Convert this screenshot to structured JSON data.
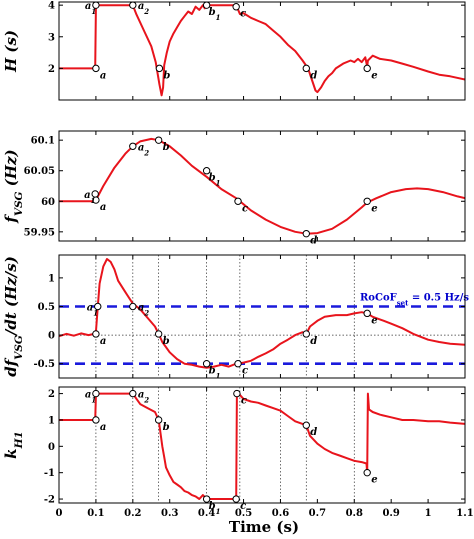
{
  "chart_data": {
    "type": "line",
    "shared_x": {
      "xlabel": "Time (s)",
      "xlim": [
        0,
        1.1
      ],
      "ticks": [
        0,
        0.1,
        0.2,
        0.3,
        0.4,
        0.5,
        0.6,
        0.7,
        0.8,
        0.9,
        1,
        1.1
      ],
      "tick_labels": [
        "0",
        "0.1",
        "0.2",
        "0.3",
        "0.4",
        "0.5",
        "0.6",
        "0.7",
        "0.8",
        "0.9",
        "1",
        "1.1"
      ]
    },
    "line_color": "#e8141c",
    "ref_line_color": "#1a1adc",
    "panels": [
      {
        "id": "H",
        "ylabel_main": "H",
        "ylabel_unit": " (s)",
        "ylim": [
          1,
          4.1
        ],
        "yticks": [
          2,
          3,
          4
        ],
        "ytick_labels": [
          "2",
          "3",
          "4"
        ],
        "vlines": [],
        "series": [
          [
            0,
            2
          ],
          [
            0.098,
            2
          ],
          [
            0.1,
            3.9
          ],
          [
            0.102,
            4
          ],
          [
            0.2,
            4
          ],
          [
            0.21,
            3.7
          ],
          [
            0.23,
            3.2
          ],
          [
            0.25,
            2.7
          ],
          [
            0.262,
            2.2
          ],
          [
            0.272,
            1.5
          ],
          [
            0.278,
            1.15
          ],
          [
            0.282,
            1.4
          ],
          [
            0.285,
            2.1
          ],
          [
            0.292,
            2.5
          ],
          [
            0.3,
            2.85
          ],
          [
            0.31,
            3.1
          ],
          [
            0.32,
            3.3
          ],
          [
            0.33,
            3.5
          ],
          [
            0.34,
            3.65
          ],
          [
            0.35,
            3.8
          ],
          [
            0.36,
            3.72
          ],
          [
            0.37,
            3.95
          ],
          [
            0.38,
            3.85
          ],
          [
            0.39,
            4
          ],
          [
            0.395,
            3.9
          ],
          [
            0.4,
            4
          ],
          [
            0.48,
            4
          ],
          [
            0.49,
            3.72
          ],
          [
            0.5,
            3.75
          ],
          [
            0.52,
            3.6
          ],
          [
            0.54,
            3.5
          ],
          [
            0.56,
            3.4
          ],
          [
            0.58,
            3.2
          ],
          [
            0.6,
            3
          ],
          [
            0.62,
            2.75
          ],
          [
            0.64,
            2.55
          ],
          [
            0.66,
            2.25
          ],
          [
            0.675,
            2
          ],
          [
            0.685,
            1.65
          ],
          [
            0.695,
            1.3
          ],
          [
            0.7,
            1.25
          ],
          [
            0.71,
            1.4
          ],
          [
            0.72,
            1.6
          ],
          [
            0.73,
            1.75
          ],
          [
            0.74,
            1.85
          ],
          [
            0.75,
            2
          ],
          [
            0.77,
            2.15
          ],
          [
            0.79,
            2.25
          ],
          [
            0.8,
            2.2
          ],
          [
            0.81,
            2.3
          ],
          [
            0.82,
            2.2
          ],
          [
            0.83,
            2.35
          ],
          [
            0.835,
            2.05
          ],
          [
            0.837,
            2.25
          ],
          [
            0.85,
            2.4
          ],
          [
            0.87,
            2.3
          ],
          [
            0.9,
            2.25
          ],
          [
            0.93,
            2.15
          ],
          [
            0.96,
            2.05
          ],
          [
            1,
            1.9
          ],
          [
            1.03,
            1.8
          ],
          [
            1.06,
            1.75
          ],
          [
            1.1,
            1.65
          ]
        ],
        "points": [
          {
            "base": "a",
            "sub": "",
            "x": 0.1,
            "y": 2
          },
          {
            "base": "a",
            "sub": "1",
            "x": 0.1,
            "y": 4
          },
          {
            "base": "a",
            "sub": "2",
            "x": 0.2,
            "y": 4
          },
          {
            "base": "b",
            "sub": "",
            "x": 0.272,
            "y": 2
          },
          {
            "base": "b",
            "sub": "1",
            "x": 0.4,
            "y": 4
          },
          {
            "base": "c",
            "sub": "",
            "x": 0.48,
            "y": 3.95
          },
          {
            "base": "d",
            "sub": "",
            "x": 0.67,
            "y": 2
          },
          {
            "base": "e",
            "sub": "",
            "x": 0.835,
            "y": 2
          }
        ]
      },
      {
        "id": "f",
        "ylabel_main": "f",
        "ylabel_sub": "VSG",
        "ylabel_unit": " (Hz)",
        "ylim": [
          59.935,
          60.115
        ],
        "yticks": [
          59.95,
          60,
          60.05,
          60.1
        ],
        "ytick_labels": [
          "59.95",
          "60",
          "60.05",
          "60.1"
        ],
        "vlines": [],
        "series": [
          [
            0,
            60
          ],
          [
            0.05,
            60
          ],
          [
            0.09,
            60
          ],
          [
            0.1,
            60.002
          ],
          [
            0.12,
            60.025
          ],
          [
            0.15,
            60.055
          ],
          [
            0.18,
            60.078
          ],
          [
            0.2,
            60.09
          ],
          [
            0.22,
            60.098
          ],
          [
            0.25,
            60.102
          ],
          [
            0.27,
            60.1
          ],
          [
            0.3,
            60.09
          ],
          [
            0.33,
            60.075
          ],
          [
            0.36,
            60.058
          ],
          [
            0.4,
            60.04
          ],
          [
            0.44,
            60.02
          ],
          [
            0.48,
            60.005
          ],
          [
            0.52,
            59.985
          ],
          [
            0.56,
            59.97
          ],
          [
            0.6,
            59.958
          ],
          [
            0.64,
            59.95
          ],
          [
            0.67,
            59.947
          ],
          [
            0.7,
            59.948
          ],
          [
            0.74,
            59.955
          ],
          [
            0.78,
            59.97
          ],
          [
            0.82,
            59.99
          ],
          [
            0.835,
            59.998
          ],
          [
            0.86,
            60.005
          ],
          [
            0.9,
            60.015
          ],
          [
            0.94,
            60.02
          ],
          [
            0.97,
            60.021
          ],
          [
            1,
            60.02
          ],
          [
            1.04,
            60.015
          ],
          [
            1.08,
            60.008
          ],
          [
            1.1,
            60.005
          ]
        ],
        "points": [
          {
            "base": "a",
            "sub": "",
            "x": 0.1,
            "y": 60.002
          },
          {
            "base": "a",
            "sub": "1",
            "x": 0.098,
            "y": 60.012
          },
          {
            "base": "a",
            "sub": "2",
            "x": 0.2,
            "y": 60.09
          },
          {
            "base": "b",
            "sub": "",
            "x": 0.27,
            "y": 60.1
          },
          {
            "base": "b",
            "sub": "1",
            "x": 0.4,
            "y": 60.05
          },
          {
            "base": "c",
            "sub": "",
            "x": 0.485,
            "y": 60.0
          },
          {
            "base": "d",
            "sub": "",
            "x": 0.67,
            "y": 59.947
          },
          {
            "base": "e",
            "sub": "",
            "x": 0.835,
            "y": 60.0
          }
        ]
      },
      {
        "id": "dfdt",
        "ylabel_main": "df",
        "ylabel_sub": "VSG",
        "ylabel_unit": "/dt (Hz/s)",
        "ylim": [
          -0.75,
          1.4
        ],
        "yticks": [
          -0.5,
          0,
          0.5,
          1
        ],
        "ytick_labels": [
          "-0.5",
          "0",
          "0.5",
          "1"
        ],
        "vlines": [
          0.1,
          0.2,
          0.27,
          0.4,
          0.49,
          0.67,
          0.8
        ],
        "hline_zero": 0,
        "refs": [
          0.5,
          -0.5
        ],
        "ref_label_main": "RoCoF",
        "ref_label_sub": "set",
        "ref_label_tail": " = 0.5 Hz/s",
        "series": [
          [
            0,
            -0.02
          ],
          [
            0.02,
            0.02
          ],
          [
            0.04,
            -0.01
          ],
          [
            0.06,
            0.03
          ],
          [
            0.08,
            0.0
          ],
          [
            0.095,
            0.02
          ],
          [
            0.1,
            0.05
          ],
          [
            0.105,
            0.5
          ],
          [
            0.11,
            0.9
          ],
          [
            0.12,
            1.2
          ],
          [
            0.13,
            1.33
          ],
          [
            0.14,
            1.28
          ],
          [
            0.15,
            1.15
          ],
          [
            0.16,
            0.95
          ],
          [
            0.18,
            0.75
          ],
          [
            0.2,
            0.55
          ],
          [
            0.22,
            0.45
          ],
          [
            0.24,
            0.3
          ],
          [
            0.26,
            0.15
          ],
          [
            0.27,
            0.02
          ],
          [
            0.28,
            -0.12
          ],
          [
            0.3,
            -0.3
          ],
          [
            0.32,
            -0.42
          ],
          [
            0.34,
            -0.5
          ],
          [
            0.36,
            -0.52
          ],
          [
            0.38,
            -0.55
          ],
          [
            0.4,
            -0.57
          ],
          [
            0.42,
            -0.55
          ],
          [
            0.44,
            -0.52
          ],
          [
            0.46,
            -0.55
          ],
          [
            0.48,
            -0.5
          ],
          [
            0.5,
            -0.48
          ],
          [
            0.52,
            -0.45
          ],
          [
            0.54,
            -0.38
          ],
          [
            0.56,
            -0.32
          ],
          [
            0.58,
            -0.25
          ],
          [
            0.6,
            -0.15
          ],
          [
            0.62,
            -0.08
          ],
          [
            0.64,
            0.0
          ],
          [
            0.66,
            0.05
          ],
          [
            0.67,
            0.02
          ],
          [
            0.68,
            0.15
          ],
          [
            0.7,
            0.25
          ],
          [
            0.72,
            0.32
          ],
          [
            0.75,
            0.35
          ],
          [
            0.78,
            0.35
          ],
          [
            0.8,
            0.38
          ],
          [
            0.82,
            0.4
          ],
          [
            0.835,
            0.38
          ],
          [
            0.85,
            0.32
          ],
          [
            0.88,
            0.25
          ],
          [
            0.9,
            0.2
          ],
          [
            0.93,
            0.12
          ],
          [
            0.96,
            0.02
          ],
          [
            1.0,
            -0.08
          ],
          [
            1.03,
            -0.12
          ],
          [
            1.06,
            -0.15
          ],
          [
            1.1,
            -0.17
          ]
        ],
        "points": [
          {
            "base": "a",
            "sub": "",
            "x": 0.1,
            "y": 0.02
          },
          {
            "base": "a",
            "sub": "1",
            "x": 0.105,
            "y": 0.5
          },
          {
            "base": "a",
            "sub": "2",
            "x": 0.2,
            "y": 0.5
          },
          {
            "base": "b",
            "sub": "",
            "x": 0.27,
            "y": 0.02
          },
          {
            "base": "b",
            "sub": "1",
            "x": 0.4,
            "y": -0.5
          },
          {
            "base": "c",
            "sub": "",
            "x": 0.485,
            "y": -0.5
          },
          {
            "base": "d",
            "sub": "",
            "x": 0.67,
            "y": 0.02
          },
          {
            "base": "e",
            "sub": "",
            "x": 0.835,
            "y": 0.38
          }
        ]
      },
      {
        "id": "kH1",
        "ylabel_main": "k",
        "ylabel_sub": "H1",
        "ylabel_unit": "",
        "ylim": [
          -2.15,
          2.25
        ],
        "yticks": [
          -2,
          -1,
          0,
          1,
          2
        ],
        "ytick_labels": [
          "-2",
          "-1",
          "0",
          "1",
          "2"
        ],
        "vlines": [
          0.1,
          0.2,
          0.27,
          0.4,
          0.49,
          0.6,
          0.67,
          0.8
        ],
        "series": [
          [
            0,
            1
          ],
          [
            0.098,
            1
          ],
          [
            0.1,
            1.9
          ],
          [
            0.102,
            2
          ],
          [
            0.2,
            2
          ],
          [
            0.21,
            1.8
          ],
          [
            0.22,
            1.6
          ],
          [
            0.24,
            1.45
          ],
          [
            0.26,
            1.3
          ],
          [
            0.27,
            1.0
          ],
          [
            0.275,
            0.5
          ],
          [
            0.28,
            0.0
          ],
          [
            0.285,
            -0.4
          ],
          [
            0.29,
            -0.8
          ],
          [
            0.3,
            -1.1
          ],
          [
            0.31,
            -1.35
          ],
          [
            0.32,
            -1.45
          ],
          [
            0.33,
            -1.55
          ],
          [
            0.34,
            -1.7
          ],
          [
            0.35,
            -1.75
          ],
          [
            0.36,
            -1.85
          ],
          [
            0.37,
            -1.9
          ],
          [
            0.38,
            -2.0
          ],
          [
            0.39,
            -1.85
          ],
          [
            0.4,
            -2.0
          ],
          [
            0.48,
            -2.0
          ],
          [
            0.482,
            2.0
          ],
          [
            0.49,
            1.95
          ],
          [
            0.5,
            1.8
          ],
          [
            0.52,
            1.7
          ],
          [
            0.54,
            1.65
          ],
          [
            0.56,
            1.55
          ],
          [
            0.58,
            1.45
          ],
          [
            0.6,
            1.35
          ],
          [
            0.62,
            1.15
          ],
          [
            0.64,
            0.95
          ],
          [
            0.66,
            0.85
          ],
          [
            0.67,
            0.8
          ],
          [
            0.68,
            0.4
          ],
          [
            0.7,
            0.1
          ],
          [
            0.72,
            -0.1
          ],
          [
            0.74,
            -0.25
          ],
          [
            0.76,
            -0.35
          ],
          [
            0.78,
            -0.45
          ],
          [
            0.8,
            -0.55
          ],
          [
            0.82,
            -0.6
          ],
          [
            0.833,
            -0.65
          ],
          [
            0.835,
            -1.0
          ],
          [
            0.837,
            2.0
          ],
          [
            0.84,
            1.4
          ],
          [
            0.85,
            1.3
          ],
          [
            0.87,
            1.2
          ],
          [
            0.9,
            1.1
          ],
          [
            0.93,
            1.0
          ],
          [
            0.96,
            1.0
          ],
          [
            1.0,
            0.95
          ],
          [
            1.03,
            0.95
          ],
          [
            1.06,
            0.9
          ],
          [
            1.1,
            0.85
          ]
        ],
        "points": [
          {
            "base": "a",
            "sub": "",
            "x": 0.1,
            "y": 1
          },
          {
            "base": "a",
            "sub": "1",
            "x": 0.1,
            "y": 2
          },
          {
            "base": "a",
            "sub": "2",
            "x": 0.2,
            "y": 2
          },
          {
            "base": "b",
            "sub": "",
            "x": 0.27,
            "y": 1.0
          },
          {
            "base": "b",
            "sub": "1",
            "x": 0.4,
            "y": -2.0
          },
          {
            "base": "c",
            "sub": "",
            "x": 0.482,
            "y": 2.0
          },
          {
            "base": "c",
            "sub": "",
            "x": 0.48,
            "y": -2.0
          },
          {
            "base": "d",
            "sub": "",
            "x": 0.67,
            "y": 0.8
          },
          {
            "base": "e",
            "sub": "",
            "x": 0.835,
            "y": -1.0
          }
        ]
      }
    ]
  }
}
